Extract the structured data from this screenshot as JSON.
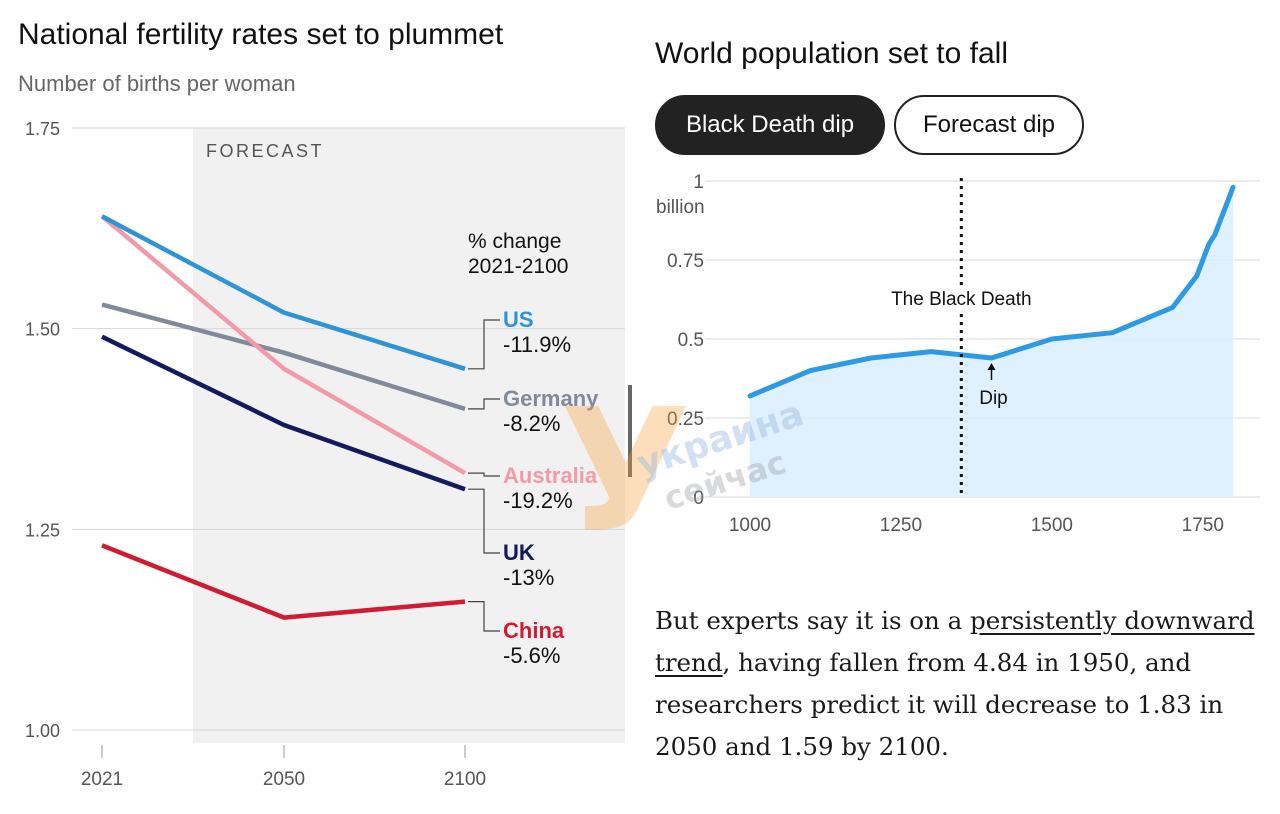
{
  "chart_data": [
    {
      "type": "line",
      "title": "National fertility rates set to plummet",
      "subtitle": "Number of births per woman",
      "x": [
        "2021",
        "2050",
        "2100"
      ],
      "ylim": [
        1.0,
        1.75
      ],
      "yticks": [
        "1.75",
        "1.50",
        "1.25",
        "1.00"
      ],
      "forecast_label": "FORECAST",
      "legend_header": [
        "% change",
        "2021-2100"
      ],
      "series": [
        {
          "name": "US",
          "values": [
            1.64,
            1.52,
            1.45
          ],
          "change": "-11.9%",
          "color": "#2e94d6"
        },
        {
          "name": "Germany",
          "values": [
            1.53,
            1.47,
            1.4
          ],
          "change": "-8.2%",
          "color": "#818a9a"
        },
        {
          "name": "Australia",
          "values": [
            1.64,
            1.45,
            1.32
          ],
          "change": "-19.2%",
          "color": "#f29aa8"
        },
        {
          "name": "UK",
          "values": [
            1.49,
            1.38,
            1.3
          ],
          "change": "-13%",
          "color": "#131a5e"
        },
        {
          "name": "China",
          "values": [
            1.23,
            1.14,
            1.16
          ],
          "change": "-5.6%",
          "color": "#d01c33"
        }
      ]
    },
    {
      "type": "area",
      "title": "World population set to fall",
      "tabs": [
        "Black Death dip",
        "Forecast dip"
      ],
      "active_tab": 0,
      "yticks": [
        "1",
        "0.75",
        "0.5",
        "0.25",
        "0"
      ],
      "yunit": "billion",
      "xticks": [
        "1000",
        "1250",
        "1500",
        "1750"
      ],
      "xlim": [
        1000,
        1800
      ],
      "ylim": [
        0,
        1
      ],
      "series": [
        {
          "x": [
            1000,
            1100,
            1200,
            1300,
            1400,
            1500,
            1600,
            1700,
            1720,
            1740,
            1760,
            1770,
            1780,
            1790,
            1800
          ],
          "values": [
            0.32,
            0.4,
            0.44,
            0.46,
            0.44,
            0.5,
            0.52,
            0.6,
            0.65,
            0.7,
            0.8,
            0.83,
            0.88,
            0.93,
            0.98
          ],
          "color": "#2e9ae6"
        }
      ],
      "annotations": {
        "black_death_year": 1350,
        "black_death_label": "The Black Death",
        "dip_year": 1400,
        "dip_label": "Dip"
      }
    }
  ],
  "body_text": {
    "before_link": "But experts say it is on a ",
    "link_part1": "persistently downward",
    "link_part2": "trend",
    "after_link": ", having fallen from 4.84 in 1950, and researchers predict it will decrease to 1.83 in 2050 and 1.59 by 2100."
  },
  "watermark": {
    "line1": "украина",
    "line2": "сейчас",
    "letter": "У"
  }
}
